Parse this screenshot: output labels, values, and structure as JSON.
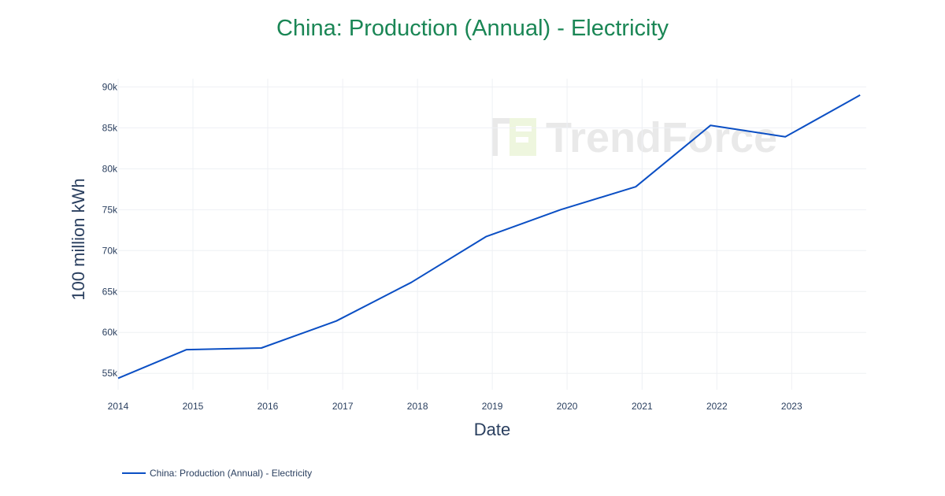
{
  "chart_data": {
    "type": "line",
    "title": "China: Production (Annual) - Electricity",
    "xlabel": "Date",
    "ylabel": "100 million kWh",
    "x": [
      "2014-01-01",
      "2014-12-01",
      "2015-12-01",
      "2016-12-01",
      "2017-12-01",
      "2018-12-01",
      "2019-12-01",
      "2020-12-01",
      "2021-12-01",
      "2022-12-01",
      "2023-12-01"
    ],
    "series": [
      {
        "name": "China: Production (Annual) - Electricity",
        "values": [
          54400,
          57900,
          58100,
          61400,
          66100,
          71700,
          75000,
          77800,
          85300,
          83900,
          89000
        ]
      }
    ],
    "x_ticks": [
      "2014",
      "2015",
      "2016",
      "2017",
      "2018",
      "2019",
      "2020",
      "2021",
      "2022",
      "2023"
    ],
    "y_ticks": [
      55000,
      60000,
      65000,
      70000,
      75000,
      80000,
      85000,
      90000
    ],
    "y_tick_labels": [
      "55k",
      "60k",
      "65k",
      "70k",
      "75k",
      "80k",
      "85k",
      "90k"
    ],
    "xlim": [
      "2014-01-01",
      "2023-12-31"
    ],
    "ylim": [
      53000,
      91000
    ],
    "grid": true,
    "legend_position": "bottom-left",
    "line_color": "#0b4fc4",
    "title_color": "#1a8655"
  },
  "watermark": {
    "text": "TrendForce"
  }
}
